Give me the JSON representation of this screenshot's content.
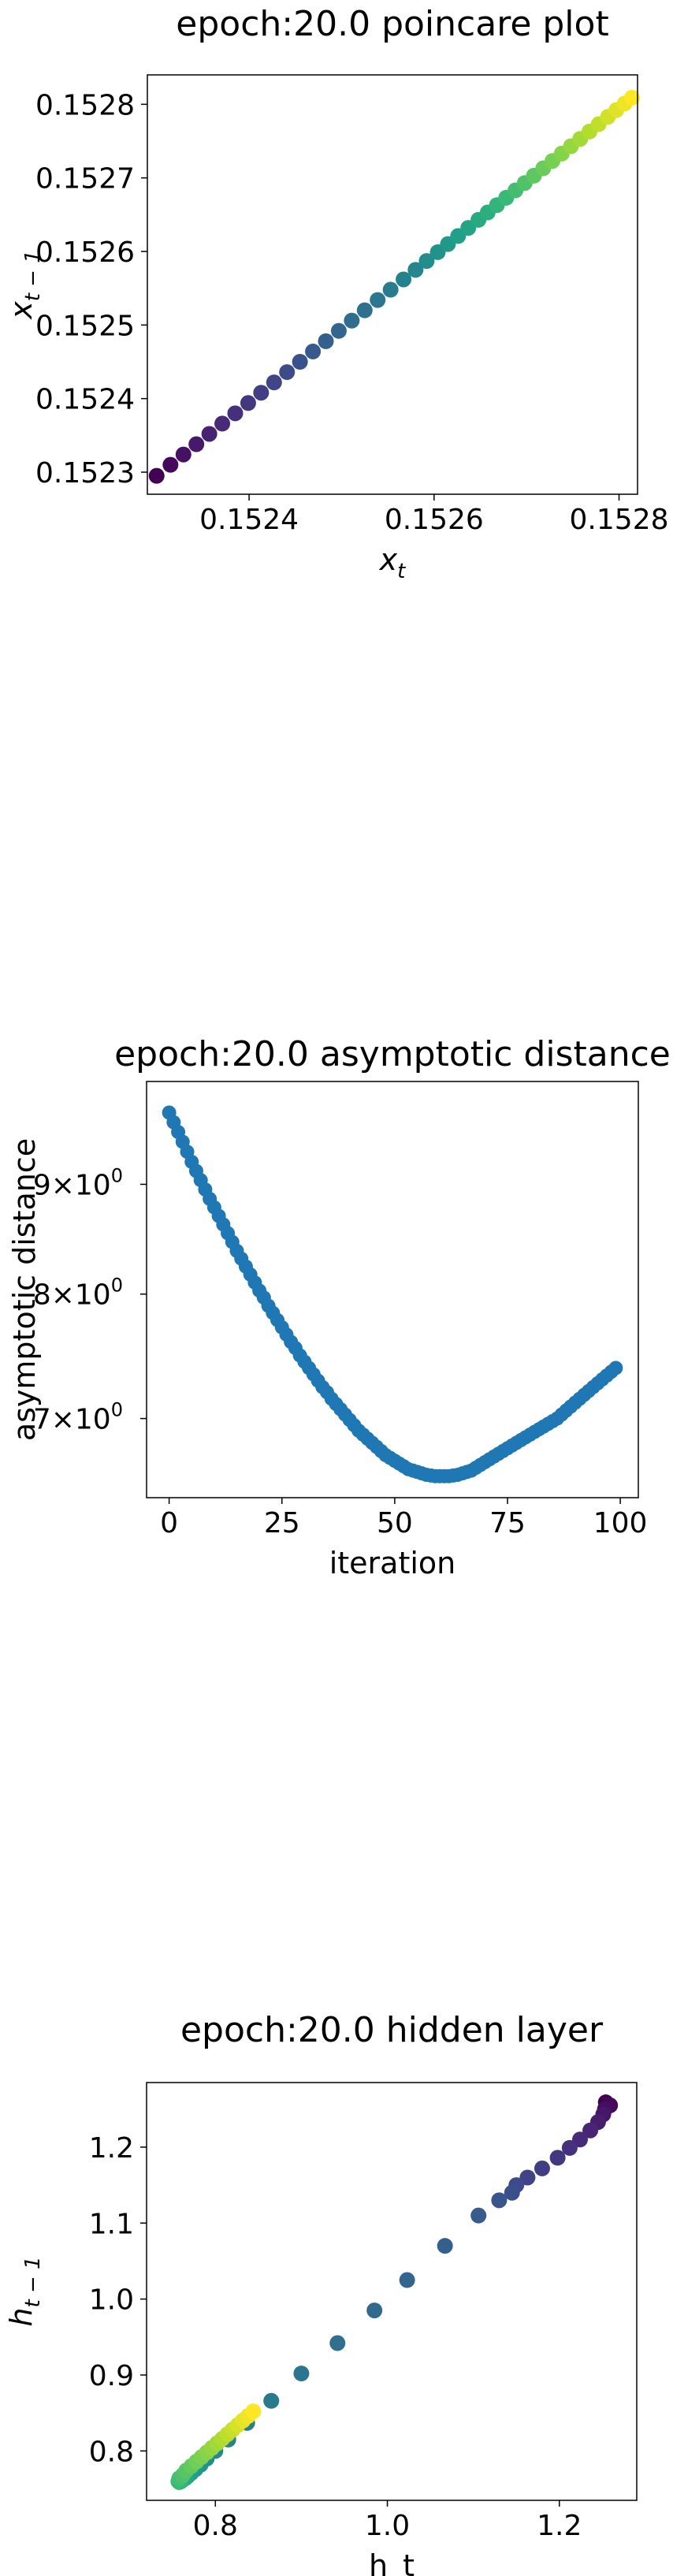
{
  "chart_data": [
    {
      "type": "scatter",
      "title": "epoch:20.0 poincare plot",
      "xlabel": "x",
      "xlabel_sub": "t",
      "ylabel": "x",
      "ylabel_sub": "t − 1",
      "xlim": [
        0.15229,
        0.15282
      ],
      "ylim": [
        0.15227,
        0.15284
      ],
      "xticks": [
        0.1524,
        0.1526,
        0.1528
      ],
      "xtick_labels": [
        "0.1524",
        "0.1526",
        "0.1528"
      ],
      "yticks": [
        0.1523,
        0.1524,
        0.1525,
        0.1526,
        0.1527,
        0.1528
      ],
      "ytick_labels": [
        "0.1523",
        "0.1524",
        "0.1525",
        "0.1526",
        "0.1527",
        "0.1528"
      ],
      "colormap": "viridis",
      "x": [
        0.1523,
        0.152315,
        0.152329,
        0.152343,
        0.152357,
        0.152371,
        0.152385,
        0.152399,
        0.152413,
        0.152427,
        0.152441,
        0.152455,
        0.152469,
        0.152483,
        0.152497,
        0.152511,
        0.152525,
        0.152539,
        0.152553,
        0.152567,
        0.15258,
        0.152592,
        0.152604,
        0.152615,
        0.152626,
        0.152637,
        0.152648,
        0.152658,
        0.152668,
        0.152678,
        0.152688,
        0.152698,
        0.152708,
        0.152718,
        0.152728,
        0.152738,
        0.152748,
        0.152758,
        0.152768,
        0.152778,
        0.152788,
        0.152797,
        0.152806,
        0.152814
      ],
      "y": [
        0.152295,
        0.15231,
        0.152324,
        0.152338,
        0.152352,
        0.152366,
        0.15238,
        0.152394,
        0.152408,
        0.152422,
        0.152436,
        0.15245,
        0.152464,
        0.152478,
        0.152492,
        0.152506,
        0.15252,
        0.152534,
        0.152548,
        0.152562,
        0.152575,
        0.152587,
        0.152599,
        0.15261,
        0.152621,
        0.152632,
        0.152643,
        0.152653,
        0.152663,
        0.152673,
        0.152683,
        0.152693,
        0.152703,
        0.152713,
        0.152723,
        0.152733,
        0.152743,
        0.152753,
        0.152763,
        0.152773,
        0.152783,
        0.152792,
        0.152801,
        0.152809
      ]
    },
    {
      "type": "scatter",
      "title": "epoch:20.0 asymptotic distance",
      "xlabel": "iteration",
      "ylabel": "asymptotic distance",
      "yscale": "log",
      "xlim": [
        -5,
        104
      ],
      "ylim": [
        6.43,
        10.05
      ],
      "xticks": [
        0,
        25,
        50,
        75,
        100
      ],
      "xtick_labels": [
        "0",
        "25",
        "50",
        "75",
        "100"
      ],
      "yticks": [
        7,
        8,
        9
      ],
      "ytick_labels": [
        "7",
        "8",
        "9"
      ],
      "ytick_suffix": "×10",
      "ytick_exponent": "0",
      "color": "#1f77b4",
      "x": [
        0,
        1,
        2,
        3,
        4,
        5,
        6,
        7,
        8,
        9,
        10,
        11,
        12,
        13,
        14,
        15,
        16,
        17,
        18,
        19,
        20,
        21,
        22,
        23,
        24,
        25,
        26,
        27,
        28,
        29,
        30,
        31,
        32,
        33,
        34,
        35,
        36,
        37,
        38,
        39,
        40,
        41,
        42,
        43,
        44,
        45,
        46,
        47,
        48,
        49,
        50,
        51,
        52,
        53,
        54,
        55,
        56,
        57,
        58,
        59,
        60,
        61,
        62,
        63,
        64,
        65,
        66,
        67,
        68,
        69,
        70,
        71,
        72,
        73,
        74,
        75,
        76,
        77,
        78,
        79,
        80,
        81,
        82,
        83,
        84,
        85,
        86,
        87,
        88,
        89,
        90,
        91,
        92,
        93,
        94,
        95,
        96,
        97,
        98,
        99
      ],
      "values": [
        9.72,
        9.62,
        9.52,
        9.42,
        9.32,
        9.22,
        9.13,
        9.04,
        8.95,
        8.86,
        8.78,
        8.7,
        8.62,
        8.54,
        8.46,
        8.38,
        8.31,
        8.24,
        8.17,
        8.1,
        8.03,
        7.97,
        7.9,
        7.84,
        7.78,
        7.72,
        7.66,
        7.6,
        7.55,
        7.49,
        7.44,
        7.39,
        7.34,
        7.29,
        7.24,
        7.2,
        7.15,
        7.11,
        7.07,
        7.03,
        6.99,
        6.95,
        6.91,
        6.88,
        6.85,
        6.82,
        6.79,
        6.76,
        6.73,
        6.71,
        6.69,
        6.67,
        6.65,
        6.63,
        6.62,
        6.61,
        6.6,
        6.59,
        6.585,
        6.58,
        6.58,
        6.58,
        6.58,
        6.585,
        6.59,
        6.6,
        6.61,
        6.62,
        6.64,
        6.66,
        6.68,
        6.7,
        6.72,
        6.74,
        6.76,
        6.78,
        6.8,
        6.82,
        6.84,
        6.86,
        6.88,
        6.9,
        6.92,
        6.94,
        6.96,
        6.98,
        7.0,
        7.03,
        7.06,
        7.09,
        7.12,
        7.15,
        7.18,
        7.21,
        7.24,
        7.27,
        7.3,
        7.33,
        7.36,
        7.39
      ]
    },
    {
      "type": "scatter",
      "title": "epoch:20.0 hidden layer",
      "xlabel": "h_t",
      "ylabel": "h",
      "ylabel_sub": "t − 1",
      "xlim": [
        0.72,
        1.29
      ],
      "ylim": [
        0.735,
        1.285
      ],
      "xticks": [
        0.8,
        1.0,
        1.2
      ],
      "xtick_labels": [
        "0.8",
        "1.0",
        "1.2"
      ],
      "yticks": [
        0.8,
        0.9,
        1.0,
        1.1,
        1.2
      ],
      "ytick_labels": [
        "0.8",
        "0.9",
        "1.0",
        "1.1",
        "1.2"
      ],
      "colormap": "viridis",
      "x": [
        1.254,
        1.259,
        1.253,
        1.251,
        1.245,
        1.236,
        1.224,
        1.212,
        1.198,
        1.18,
        1.163,
        1.15,
        1.145,
        1.13,
        1.106,
        1.067,
        1.023,
        0.985,
        0.942,
        0.9,
        0.865,
        0.837,
        0.815,
        0.8,
        0.79,
        0.783,
        0.777,
        0.772,
        0.768,
        0.765,
        0.762,
        0.76,
        0.758,
        0.757,
        0.758,
        0.762,
        0.766,
        0.772,
        0.778,
        0.784,
        0.79,
        0.796,
        0.802,
        0.808,
        0.814,
        0.82,
        0.826,
        0.832,
        0.838,
        0.844
      ],
      "values": [
        1.259,
        1.255,
        1.25,
        1.243,
        1.233,
        1.222,
        1.21,
        1.199,
        1.186,
        1.172,
        1.16,
        1.15,
        1.14,
        1.13,
        1.11,
        1.07,
        1.025,
        0.985,
        0.942,
        0.902,
        0.866,
        0.837,
        0.815,
        0.8,
        0.79,
        0.782,
        0.776,
        0.771,
        0.767,
        0.764,
        0.762,
        0.76,
        0.759,
        0.76,
        0.764,
        0.768,
        0.774,
        0.78,
        0.786,
        0.792,
        0.798,
        0.804,
        0.81,
        0.816,
        0.822,
        0.828,
        0.834,
        0.84,
        0.846,
        0.852
      ]
    }
  ]
}
